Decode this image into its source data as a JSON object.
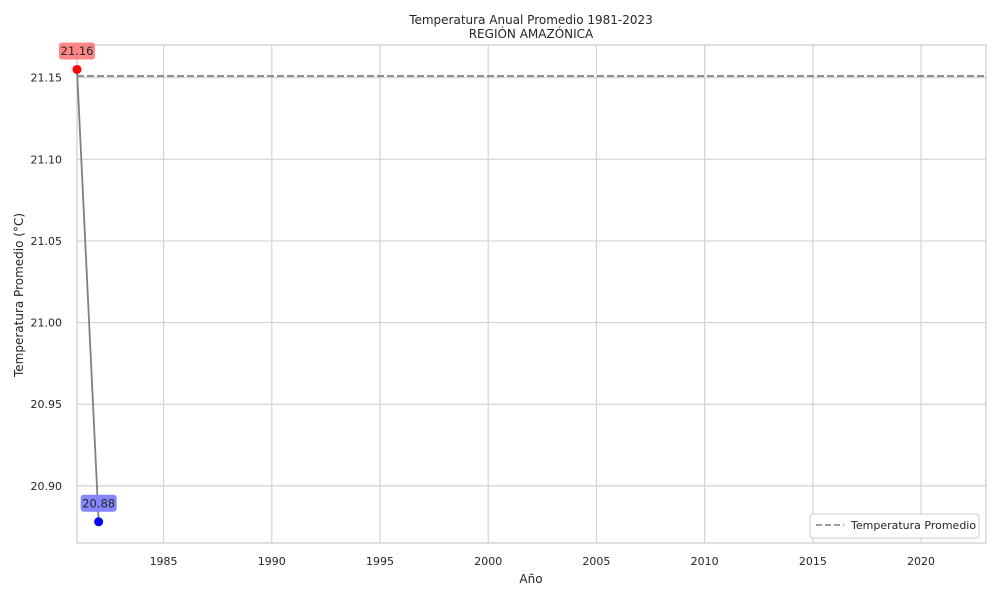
{
  "chart_data": {
    "type": "line",
    "title": "Temperatura Anual Promedio 1981-2023",
    "subtitle": "REGIÓN AMAZÓNICA",
    "xlabel": "Año",
    "ylabel": "Temperatura Promedio (°C)",
    "xlim": [
      1981,
      2023
    ],
    "ylim": [
      20.865,
      21.17
    ],
    "xticks": [
      1985,
      1990,
      1995,
      2000,
      2005,
      2010,
      2015,
      2020
    ],
    "xtick_labels": [
      "1985",
      "1990",
      "1995",
      "2000",
      "2005",
      "2010",
      "2015",
      "2020"
    ],
    "yticks": [
      20.9,
      20.95,
      21.0,
      21.05,
      21.1,
      21.15
    ],
    "ytick_labels": [
      "20.90",
      "20.95",
      "21.00",
      "21.05",
      "21.10",
      "21.15"
    ],
    "grid": true,
    "series": [
      {
        "x": [
          1981,
          1982
        ],
        "y": [
          21.155,
          20.878
        ],
        "color": "#808080"
      }
    ],
    "highlights": [
      {
        "x": 1981,
        "y": 21.155,
        "label": "21.16",
        "color": "#ff0000",
        "box_color": "#ff8080"
      },
      {
        "x": 1982,
        "y": 20.878,
        "label": "20.88",
        "color": "#0000ff",
        "box_color": "#8080ff"
      }
    ],
    "reference_line": {
      "y": 21.151,
      "name": "Temperatura Promedio",
      "color": "#808080",
      "style": "dashed"
    },
    "legend": {
      "position": "lower-right"
    }
  }
}
